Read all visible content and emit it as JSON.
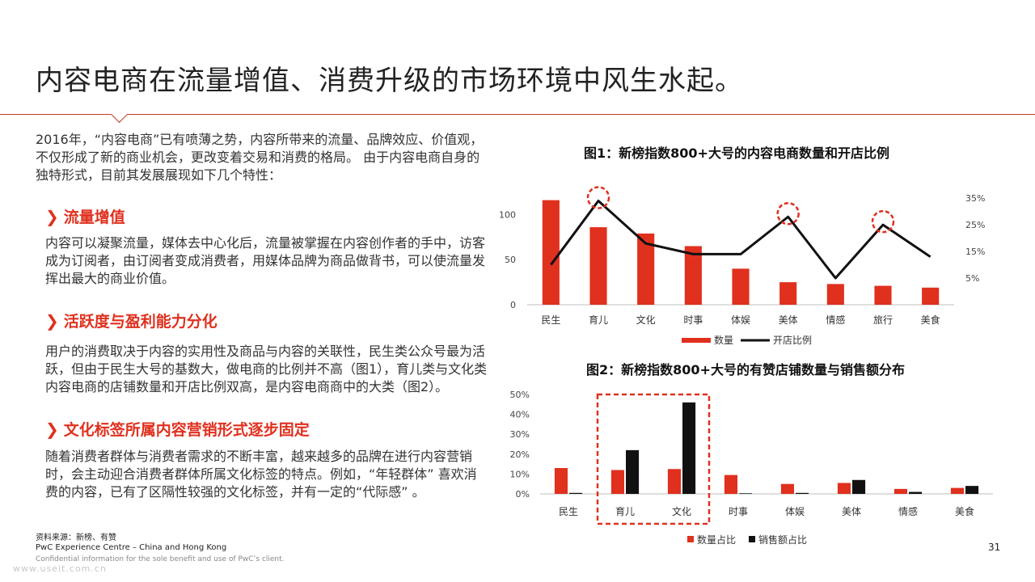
{
  "slide": {
    "title": "内容电商在流量增值、消费升级的市场环境中风生水起。",
    "intro": "2016年，“内容电商”已有喷薄之势，内容所带来的流量、品牌效应、价值观，不仅形成了新的商业机会，更改变着交易和消费的格局。 由于内容电商自身的独特形式，目前其发展展现如下几个特性：",
    "sections": [
      {
        "heading": "流量增值",
        "text": "内容可以凝聚流量，媒体去中心化后，流量被掌握在内容创作者的手中，访客成为订阅者，由订阅者变成消费者，用媒体品牌为商品做背书，可以使流量发挥出最大的商业价值。"
      },
      {
        "heading": "活跃度与盈利能力分化",
        "text": "用户的消费取决于内容的实用性及商品与内容的关联性，民生类公众号最为活跃，但由于民生大号的基数大，做电商的比例并不高（图1），育儿类与文化类内容电商的店铺数量和开店比例双高，是内容电商商中的大类（图2）。"
      },
      {
        "heading": "文化标签所属内容营销形式逐步固定",
        "text": "随着消费者群体与消费者需求的不断丰富，越来越多的品牌在进行内容营销时，会主动迎合消费者群体所属文化标签的特点。例如，“年轻群体” 喜欢消费的内容，已有了区隔性较强的文化标签，并有一定的“代际感” 。"
      }
    ],
    "source": "资料来源：新榜、有赞",
    "org": "PwC Experience Centre – China and Hong Kong",
    "confidential": "Confidential information for the sole benefit and use of PwC’s client.",
    "page_number": "31",
    "watermark": "www.useit.com.cn"
  },
  "colors": {
    "accent": "#e0301e",
    "red_bar": "#e0301e",
    "black": "#111111",
    "rule": "#c33a2a"
  },
  "chart_data": [
    {
      "type": "bar",
      "title": "图1：新榜指数800+大号的内容电商数量和开店比例",
      "categories": [
        "民生",
        "育儿",
        "文化",
        "时事",
        "体娱",
        "美体",
        "情感",
        "旅行",
        "美食"
      ],
      "series": [
        {
          "name": "数量",
          "kind": "bar",
          "axis": "left",
          "values": [
            116,
            86,
            79,
            65,
            40,
            25,
            23,
            21,
            19
          ]
        },
        {
          "name": "开店比例",
          "kind": "line",
          "axis": "right",
          "values": [
            0.1,
            0.34,
            0.18,
            0.14,
            0.14,
            0.28,
            0.05,
            0.25,
            0.13
          ]
        }
      ],
      "y_left": {
        "ticks": [
          0,
          50,
          100
        ],
        "ylim": [
          0,
          130
        ]
      },
      "y_right": {
        "ticks": [
          "35%",
          "25%",
          "15%",
          "5%"
        ],
        "ylim": [
          -0.05,
          0.39
        ]
      },
      "highlighted_categories": [
        "育儿",
        "美体",
        "旅行"
      ],
      "legend_placement": "bottom"
    },
    {
      "type": "bar",
      "title": "图2：新榜指数800+大号的有赞店铺数量与销售额分布",
      "categories": [
        "民生",
        "育儿",
        "文化",
        "时事",
        "体娱",
        "美体",
        "情感",
        "美食"
      ],
      "series": [
        {
          "name": "数量占比",
          "values": [
            0.13,
            0.12,
            0.125,
            0.095,
            0.05,
            0.055,
            0.025,
            0.03
          ]
        },
        {
          "name": "销售额占比",
          "values": [
            0.005,
            0.22,
            0.46,
            0.003,
            0.005,
            0.07,
            0.01,
            0.04
          ]
        }
      ],
      "y_ticks": [
        "50%",
        "40%",
        "30%",
        "20%",
        "10%",
        "0%"
      ],
      "ylim": [
        0,
        0.5
      ],
      "highlighted_categories": [
        "育儿",
        "文化"
      ],
      "legend_placement": "bottom"
    }
  ]
}
